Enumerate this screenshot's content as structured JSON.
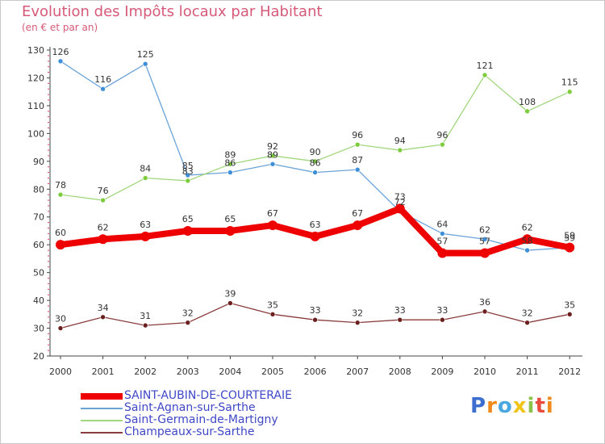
{
  "title": "Evolution des Impôts locaux par Habitant",
  "subtitle": "(en € et par an)",
  "logo": {
    "text": "Proxiti",
    "letters": [
      {
        "char": "P",
        "color": "#3d6fd0"
      },
      {
        "char": "r",
        "color": "#f08a1c"
      },
      {
        "char": "o",
        "color": "#4aa8e0"
      },
      {
        "char": "x",
        "color": "#f0c419"
      },
      {
        "char": "i",
        "color": "#8bc34a"
      },
      {
        "char": "t",
        "color": "#e84c3d"
      },
      {
        "char": "i",
        "color": "#f08a1c"
      }
    ]
  },
  "chart_data": {
    "type": "line",
    "title": "Evolution des Impôts locaux par Habitant",
    "ylabel": "(en € et par an)",
    "xlabel": "",
    "ylim": [
      20,
      130
    ],
    "yticks": [
      20,
      30,
      40,
      50,
      60,
      70,
      80,
      90,
      100,
      110,
      120,
      130
    ],
    "grid": false,
    "categories": [
      "2000",
      "2001",
      "2002",
      "2003",
      "2004",
      "2005",
      "2006",
      "2007",
      "2008",
      "2009",
      "2010",
      "2011",
      "2012"
    ],
    "series": [
      {
        "name": "SAINT-AUBIN-DE-COURTERAIE",
        "color": "#ee0000",
        "emphasis": true,
        "values": [
          60,
          62,
          63,
          65,
          65,
          67,
          63,
          67,
          73,
          57,
          57,
          62,
          59
        ]
      },
      {
        "name": "Saint-Agnan-sur-Sarthe",
        "color": "#6aa3d8",
        "dot": "#3f8fd8",
        "values": [
          126,
          116,
          125,
          85,
          86,
          89,
          86,
          87,
          72,
          64,
          62,
          58,
          59
        ]
      },
      {
        "name": "Saint-Germain-de-Martigny",
        "color": "#a2d77e",
        "dot": "#7ccc3e",
        "values": [
          78,
          76,
          84,
          83,
          89,
          92,
          90,
          96,
          94,
          96,
          121,
          108,
          115
        ]
      },
      {
        "name": "Champeaux-sur-Sarthe",
        "color": "#8a3b3b",
        "dot": "#6b1f1f",
        "values": [
          30,
          34,
          31,
          32,
          39,
          35,
          33,
          32,
          33,
          33,
          36,
          32,
          35
        ]
      }
    ]
  }
}
